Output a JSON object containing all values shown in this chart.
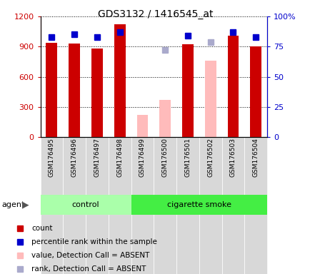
{
  "title": "GDS3132 / 1416545_at",
  "samples": [
    "GSM176495",
    "GSM176496",
    "GSM176497",
    "GSM176498",
    "GSM176499",
    "GSM176500",
    "GSM176501",
    "GSM176502",
    "GSM176503",
    "GSM176504"
  ],
  "count_values": [
    940,
    930,
    880,
    1120,
    null,
    null,
    920,
    null,
    1010,
    900
  ],
  "count_absent": [
    null,
    null,
    null,
    null,
    220,
    370,
    null,
    760,
    null,
    null
  ],
  "rank_values": [
    83,
    85,
    83,
    87,
    null,
    null,
    84,
    null,
    87,
    83
  ],
  "rank_absent": [
    null,
    null,
    null,
    null,
    null,
    72,
    null,
    79,
    null,
    null
  ],
  "ylim_left": [
    0,
    1200
  ],
  "ylim_right": [
    0,
    100
  ],
  "yticks_left": [
    0,
    300,
    600,
    900,
    1200
  ],
  "yticks_right": [
    0,
    25,
    50,
    75,
    100
  ],
  "yticklabels_left": [
    "0",
    "300",
    "600",
    "900",
    "1200"
  ],
  "yticklabels_right": [
    "0",
    "25",
    "50",
    "75",
    "100%"
  ],
  "count_color": "#cc0000",
  "count_absent_color": "#ffbbbb",
  "rank_color": "#0000cc",
  "rank_absent_color": "#aaaacc",
  "control_bg": "#aaffaa",
  "smoke_bg": "#44ee44",
  "legend_items": [
    {
      "label": "count",
      "color": "#cc0000"
    },
    {
      "label": "percentile rank within the sample",
      "color": "#0000cc"
    },
    {
      "label": "value, Detection Call = ABSENT",
      "color": "#ffbbbb"
    },
    {
      "label": "rank, Detection Call = ABSENT",
      "color": "#aaaacc"
    }
  ]
}
